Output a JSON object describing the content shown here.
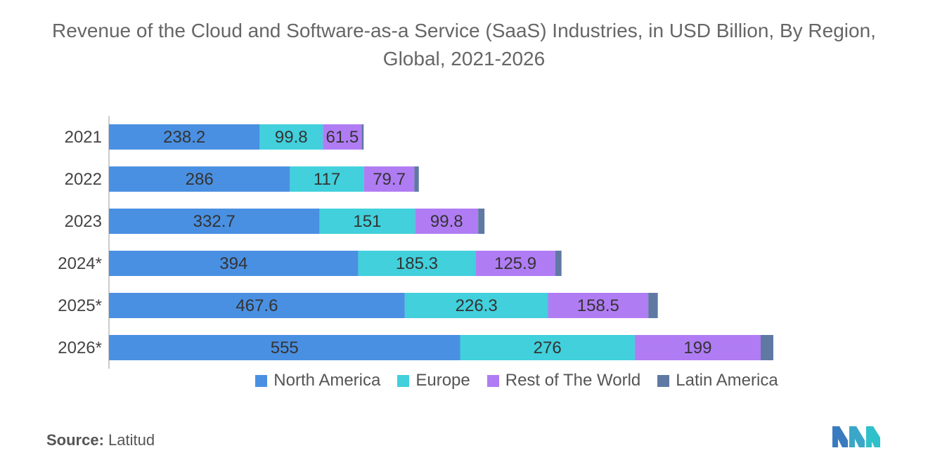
{
  "chart_data": {
    "type": "bar",
    "orientation": "horizontal",
    "stacked": true,
    "title": "Revenue of the Cloud and Software-as-a Service (SaaS) Industries, in USD Billion, By Region, Global, 2021-2026",
    "categories": [
      "2021",
      "2022",
      "2023",
      "2024*",
      "2025*",
      "2026*"
    ],
    "series": [
      {
        "name": "North America",
        "color": "#4a90e2",
        "values": [
          238.2,
          286,
          332.7,
          394,
          467.6,
          555
        ],
        "labels": [
          "238.2",
          "286",
          "332.7",
          "394",
          "467.6",
          "555"
        ]
      },
      {
        "name": "Europe",
        "color": "#41d0dc",
        "values": [
          99.8,
          117,
          151,
          185.3,
          226.3,
          276
        ],
        "labels": [
          "99.8",
          "117",
          "151",
          "185.3",
          "226.3",
          "276"
        ]
      },
      {
        "name": "Rest of The World",
        "color": "#b07cf4",
        "values": [
          61.5,
          79.7,
          99.8,
          125.9,
          158.5,
          199
        ],
        "labels": [
          "61.5",
          "79.7",
          "99.8",
          "125.9",
          "158.5",
          "199"
        ]
      },
      {
        "name": "Latin America",
        "color": "#5f79a3",
        "values": [
          3,
          7,
          10,
          10,
          15,
          20
        ],
        "labels": [
          "",
          "",
          "",
          "",
          "",
          ""
        ]
      }
    ],
    "xlabel": "",
    "ylabel": "",
    "xlim": [
      0,
      1100
    ],
    "grid": false,
    "legend_position": "bottom"
  },
  "source": {
    "label": "Source:",
    "value": "Latitud"
  }
}
